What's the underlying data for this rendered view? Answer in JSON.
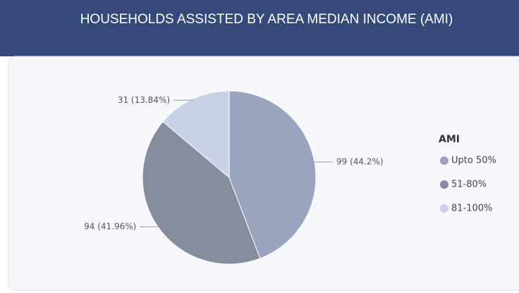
{
  "chart_data": {
    "type": "pie",
    "title": "HOUSEHOLDS ASSISTED BY AREA MEDIAN INCOME (AMI)",
    "legend_title": "AMI",
    "categories": [
      "Upto 50%",
      "51-80%",
      "81-100%"
    ],
    "values": [
      99,
      94,
      31
    ],
    "value_labels": [
      "99 (44.2%)",
      "94 (41.96%)",
      "31 (13.84%)"
    ],
    "colors": [
      "#99a4bf",
      "#868d9d",
      "#c9d1e6"
    ],
    "legend": "right"
  }
}
